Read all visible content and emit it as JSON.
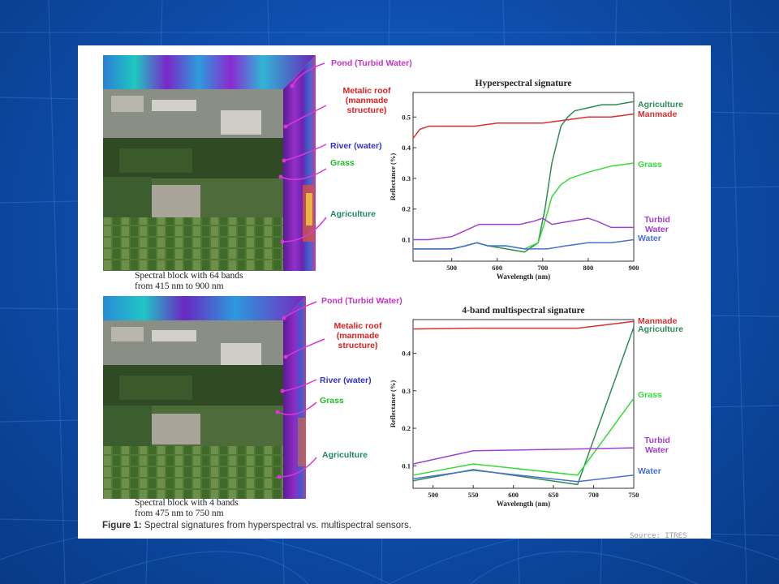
{
  "slide": {
    "caption_bold": "Figure 1:",
    "caption_text": " Spectral signatures from hyperspectral vs. multispectral sensors.",
    "source": "Source: ITRES"
  },
  "cubes": [
    {
      "label_line1": "Spectral block with 64 bands",
      "label_line2": "from 415 nm to 900 nm",
      "annotations": [
        {
          "text": "Pond (Turbid Water)",
          "color": "#c833c8"
        },
        {
          "text": "Metalic roof\n(manmade\nstructure)",
          "color": "#e02020"
        },
        {
          "text": "River (water)",
          "color": "#3030d0"
        },
        {
          "text": "Grass",
          "color": "#22bb22"
        },
        {
          "text": "Agriculture",
          "color": "#208860"
        }
      ]
    },
    {
      "label_line1": "Spectral block with 4 bands",
      "label_line2": "from 475 nm to 750 nm",
      "annotations": [
        {
          "text": "Pond (Turbid Water)",
          "color": "#c833c8"
        },
        {
          "text": "Metalic roof\n(manmade\nstructure)",
          "color": "#e02020"
        },
        {
          "text": "River (water)",
          "color": "#3030d0"
        },
        {
          "text": "Grass",
          "color": "#22bb22"
        },
        {
          "text": "Agriculture",
          "color": "#208860"
        }
      ]
    }
  ],
  "chart_data": [
    {
      "type": "line",
      "title": "Hyperspectral signature",
      "xlabel": "Wavelength (nm)",
      "ylabel": "Reflectance (%)",
      "xlim": [
        415,
        900
      ],
      "ylim": [
        0.03,
        0.58
      ],
      "xticks": [
        500,
        600,
        700,
        800,
        900
      ],
      "yticks": [
        0.1,
        0.2,
        0.3,
        0.4,
        0.5
      ],
      "series": [
        {
          "name": "Agriculture",
          "color": "#2e8b57",
          "x": [
            415,
            450,
            500,
            530,
            555,
            580,
            620,
            660,
            690,
            705,
            720,
            740,
            755,
            770,
            800,
            830,
            860,
            900
          ],
          "y": [
            0.07,
            0.07,
            0.07,
            0.08,
            0.09,
            0.08,
            0.07,
            0.06,
            0.09,
            0.2,
            0.35,
            0.47,
            0.5,
            0.52,
            0.53,
            0.54,
            0.54,
            0.55
          ]
        },
        {
          "name": "Manmade",
          "color": "#d83030",
          "x": [
            415,
            430,
            450,
            500,
            550,
            600,
            650,
            700,
            750,
            800,
            850,
            900
          ],
          "y": [
            0.43,
            0.46,
            0.47,
            0.47,
            0.47,
            0.48,
            0.48,
            0.48,
            0.49,
            0.5,
            0.5,
            0.51
          ]
        },
        {
          "name": "Grass",
          "color": "#33dd33",
          "x": [
            415,
            450,
            500,
            530,
            555,
            580,
            620,
            660,
            690,
            705,
            720,
            740,
            760,
            800,
            850,
            900
          ],
          "y": [
            0.07,
            0.07,
            0.07,
            0.08,
            0.09,
            0.08,
            0.08,
            0.07,
            0.09,
            0.16,
            0.24,
            0.28,
            0.3,
            0.32,
            0.34,
            0.35
          ]
        },
        {
          "name": "Turbid Water",
          "color": "#a040d0",
          "x": [
            415,
            450,
            500,
            530,
            560,
            590,
            620,
            650,
            680,
            700,
            720,
            760,
            800,
            820,
            850,
            900
          ],
          "y": [
            0.1,
            0.1,
            0.11,
            0.13,
            0.15,
            0.15,
            0.15,
            0.15,
            0.16,
            0.17,
            0.15,
            0.16,
            0.17,
            0.16,
            0.14,
            0.14
          ]
        },
        {
          "name": "Water",
          "color": "#4a6fd0",
          "x": [
            415,
            450,
            500,
            530,
            555,
            580,
            620,
            660,
            690,
            710,
            750,
            800,
            850,
            900
          ],
          "y": [
            0.07,
            0.07,
            0.07,
            0.08,
            0.09,
            0.08,
            0.08,
            0.07,
            0.07,
            0.07,
            0.08,
            0.09,
            0.09,
            0.1
          ]
        }
      ]
    },
    {
      "type": "line",
      "title": "4-band multispectral signature",
      "xlabel": "Wavelength (nm)",
      "ylabel": "Reflectance (%)",
      "xlim": [
        475,
        750
      ],
      "ylim": [
        0.04,
        0.49
      ],
      "xticks": [
        500,
        550,
        600,
        650,
        700,
        750
      ],
      "yticks": [
        0.1,
        0.2,
        0.3,
        0.4
      ],
      "series": [
        {
          "name": "Manmade",
          "color": "#d83030",
          "x": [
            475,
            550,
            680,
            750
          ],
          "y": [
            0.465,
            0.467,
            0.467,
            0.485
          ]
        },
        {
          "name": "Agriculture",
          "color": "#2e8b57",
          "x": [
            475,
            550,
            680,
            750
          ],
          "y": [
            0.06,
            0.09,
            0.05,
            0.47
          ]
        },
        {
          "name": "Grass",
          "color": "#33dd33",
          "x": [
            475,
            550,
            680,
            750
          ],
          "y": [
            0.075,
            0.105,
            0.075,
            0.28
          ]
        },
        {
          "name": "Turbid Water",
          "color": "#a040d0",
          "x": [
            475,
            550,
            680,
            750
          ],
          "y": [
            0.105,
            0.14,
            0.145,
            0.148
          ]
        },
        {
          "name": "Water",
          "color": "#4a6fd0",
          "x": [
            475,
            550,
            680,
            750
          ],
          "y": [
            0.065,
            0.088,
            0.058,
            0.075
          ]
        }
      ]
    }
  ]
}
